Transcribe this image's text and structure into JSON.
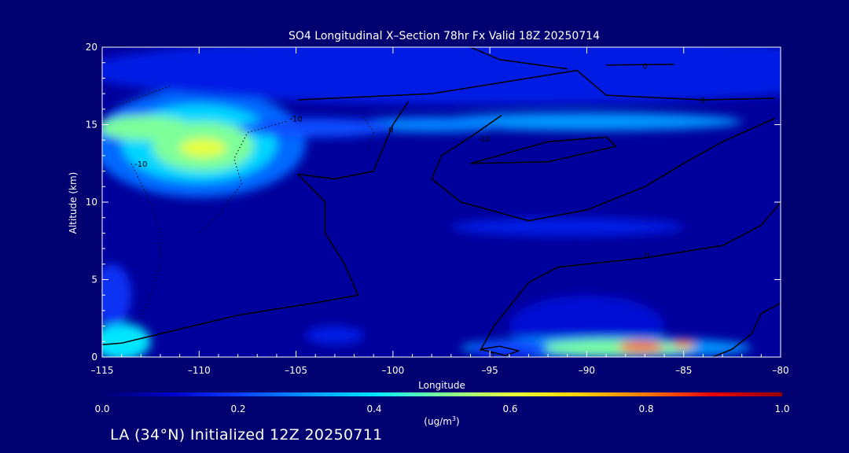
{
  "chart_data": {
    "type": "heatmap",
    "title": "SO4 Longitudinal X–Section 78hr  Fx Valid 18Z 20250714",
    "xlabel": "Longitude",
    "ylabel": "Altitude (km)",
    "xlim": [
      -115,
      -80
    ],
    "ylim": [
      0,
      20
    ],
    "x_ticks": [
      -115,
      -110,
      -105,
      -100,
      -95,
      -90,
      -85,
      -80
    ],
    "x_tick_labels": [
      "–115",
      "–110",
      "–105",
      "–100",
      "–95",
      "–90",
      "–85",
      "–80"
    ],
    "y_ticks": [
      0,
      5,
      10,
      15,
      20
    ],
    "y_tick_labels": [
      "0",
      "5",
      "10",
      "15",
      "20"
    ],
    "colorbar": {
      "min": 0.0,
      "max": 1.0,
      "ticks": [
        0.0,
        0.2,
        0.4,
        0.6,
        0.8,
        1.0
      ],
      "tick_labels": [
        "0.0",
        "0.2",
        "0.4",
        "0.6",
        "0.8",
        "1.0"
      ],
      "label_base": "(ug/m",
      "label_sup": "3",
      "label_end": ")",
      "colors": [
        "#000070",
        "#0000c8",
        "#0a3cff",
        "#0096ff",
        "#00e6ff",
        "#7dff9a",
        "#e6ff3c",
        "#ffd200",
        "#ff7800",
        "#e60000",
        "#960000"
      ]
    },
    "background_value": 0.05,
    "features": [
      {
        "lon": -110,
        "alt": 13.8,
        "rx": 5.5,
        "ry": 3.5,
        "value": 0.25
      },
      {
        "lon": -110,
        "alt": 13.8,
        "rx": 4.0,
        "ry": 2.5,
        "value": 0.38
      },
      {
        "lon": -109.8,
        "alt": 13.6,
        "rx": 2.6,
        "ry": 1.6,
        "value": 0.5
      },
      {
        "lon": -109.8,
        "alt": 13.5,
        "rx": 1.2,
        "ry": 0.6,
        "value": 0.6
      },
      {
        "lon": -112.8,
        "alt": 14.8,
        "rx": 2.4,
        "ry": 0.8,
        "value": 0.5
      },
      {
        "lon": -95,
        "alt": 18.5,
        "rx": 21,
        "ry": 2.2,
        "value": 0.15
      },
      {
        "lon": -90,
        "alt": 15.2,
        "rx": 8,
        "ry": 0.6,
        "value": 0.3
      },
      {
        "lon": -98,
        "alt": 15.0,
        "rx": 4,
        "ry": 0.5,
        "value": 0.28
      },
      {
        "lon": -104,
        "alt": 14.8,
        "rx": 4,
        "ry": 0.6,
        "value": 0.22
      },
      {
        "lon": -91,
        "alt": 8.4,
        "rx": 6,
        "ry": 0.6,
        "value": 0.15
      },
      {
        "lon": -90,
        "alt": 2.0,
        "rx": 4,
        "ry": 2.0,
        "value": 0.12
      },
      {
        "lon": -89,
        "alt": 0.6,
        "rx": 7.5,
        "ry": 0.7,
        "value": 0.3
      },
      {
        "lon": -88.5,
        "alt": 0.6,
        "rx": 4.0,
        "ry": 0.5,
        "value": 0.5
      },
      {
        "lon": -87.2,
        "alt": 0.65,
        "rx": 1.2,
        "ry": 0.35,
        "value": 0.82
      },
      {
        "lon": -85,
        "alt": 0.85,
        "rx": 0.6,
        "ry": 0.25,
        "value": 0.8
      },
      {
        "lon": -94,
        "alt": 0.5,
        "rx": 2.0,
        "ry": 0.5,
        "value": 0.2
      },
      {
        "lon": -114,
        "alt": 1.0,
        "rx": 1.5,
        "ry": 1.2,
        "value": 0.4
      },
      {
        "lon": -114.5,
        "alt": 4.0,
        "rx": 1.0,
        "ry": 2.0,
        "value": 0.18
      },
      {
        "lon": -103,
        "alt": 1.4,
        "rx": 1.5,
        "ry": 0.6,
        "value": 0.15
      }
    ],
    "contours": [
      {
        "label": "0",
        "label_at": [
          -100.1,
          14.7
        ],
        "style": "solid",
        "points": [
          [
            -99.2,
            16.5
          ],
          [
            -100,
            15
          ],
          [
            -100.5,
            13.5
          ],
          [
            -101,
            12
          ],
          [
            -103,
            11.5
          ],
          [
            -104.9,
            11.8
          ],
          [
            -103.5,
            10
          ],
          [
            -103.5,
            8
          ],
          [
            -102.5,
            6
          ],
          [
            -101.8,
            4
          ],
          [
            -104,
            3.5
          ],
          [
            -108,
            2.7
          ],
          [
            -111,
            1.8
          ],
          [
            -113,
            1.2
          ],
          [
            -114,
            0.9
          ],
          [
            -115,
            0.8
          ]
        ]
      },
      {
        "label": "-10",
        "label_at": [
          -95.3,
          14.1
        ],
        "style": "solid",
        "points": [
          [
            -94.4,
            15.6
          ],
          [
            -96,
            14.2
          ],
          [
            -97.5,
            13
          ],
          [
            -98,
            11.5
          ],
          [
            -96.5,
            10
          ],
          [
            -93,
            8.8
          ],
          [
            -90,
            9.5
          ],
          [
            -87,
            11
          ],
          [
            -85,
            12.5
          ],
          [
            -83,
            13.9
          ],
          [
            -80.3,
            15.4
          ]
        ]
      },
      {
        "label": "",
        "label_at": null,
        "style": "solid",
        "points": [
          [
            -96,
            12.5
          ],
          [
            -92,
            13.9
          ],
          [
            -89,
            14.2
          ],
          [
            -88.5,
            13.6
          ],
          [
            -92,
            12.6
          ],
          [
            -96,
            12.5
          ]
        ]
      },
      {
        "label": "0",
        "label_at": [
          -84,
          16.6
        ],
        "style": "solid",
        "points": [
          [
            -104.9,
            16.6
          ],
          [
            -98,
            17.0
          ],
          [
            -93,
            18
          ],
          [
            -90.5,
            18.5
          ],
          [
            -89,
            16.9
          ],
          [
            -84,
            16.6
          ],
          [
            -80.3,
            16.7
          ]
        ]
      },
      {
        "label": "0",
        "label_at": [
          -87,
          18.8
        ],
        "style": "solid",
        "points": [
          [
            -89,
            18.85
          ],
          [
            -85.5,
            18.9
          ]
        ]
      },
      {
        "label": "",
        "label_at": null,
        "style": "solid",
        "points": [
          [
            -96,
            20
          ],
          [
            -94.5,
            19.2
          ],
          [
            -91,
            18.6
          ]
        ]
      },
      {
        "label": "0",
        "label_at": [
          -86.9,
          6.6
        ],
        "style": "solid",
        "points": [
          [
            -80,
            10
          ],
          [
            -81,
            8.5
          ],
          [
            -83,
            7.2
          ],
          [
            -87,
            6.4
          ],
          [
            -91.5,
            5.8
          ],
          [
            -93,
            4.8
          ],
          [
            -94.8,
            2
          ],
          [
            -95.5,
            0.4
          ]
        ]
      },
      {
        "label": "0",
        "label_at": [
          -94.9,
          0.15
        ],
        "style": "solid",
        "points": [
          [
            -95.5,
            0.5
          ],
          [
            -94.5,
            0.7
          ],
          [
            -93.5,
            0.4
          ],
          [
            -94.2,
            0.1
          ],
          [
            -95.5,
            0.5
          ]
        ]
      },
      {
        "label": "",
        "label_at": null,
        "style": "solid",
        "points": [
          [
            -80,
            3.5
          ],
          [
            -81,
            2.8
          ],
          [
            -81.5,
            1.5
          ],
          [
            -82.5,
            0.5
          ],
          [
            -83.5,
            0
          ]
        ]
      },
      {
        "label": "-10",
        "label_at": [
          -105,
          15.4
        ],
        "style": "dotted",
        "points": [
          [
            -105.5,
            15.2
          ],
          [
            -107.5,
            14.5
          ],
          [
            -108.2,
            12.8
          ],
          [
            -107.8,
            11.2
          ],
          [
            -109,
            9.2
          ],
          [
            -110,
            8
          ]
        ]
      },
      {
        "label": "-10",
        "label_at": [
          -113,
          12.5
        ],
        "style": "dotted",
        "points": [
          [
            -111.5,
            17.5
          ],
          [
            -113,
            16.8
          ],
          [
            -114.8,
            16
          ]
        ]
      },
      {
        "label": "",
        "label_at": null,
        "style": "dotted",
        "points": [
          [
            -113.5,
            12.5
          ],
          [
            -112.5,
            10
          ],
          [
            -112,
            8
          ],
          [
            -112,
            6
          ],
          [
            -112.5,
            4
          ],
          [
            -113,
            2.5
          ]
        ]
      },
      {
        "label": "",
        "label_at": null,
        "style": "dotted",
        "points": [
          [
            -101.5,
            15.5
          ],
          [
            -101.0,
            14.5
          ],
          [
            -101.3,
            13.4
          ]
        ]
      }
    ]
  },
  "footer": {
    "caption": "LA (34°N) Initialized 12Z 20250711"
  }
}
